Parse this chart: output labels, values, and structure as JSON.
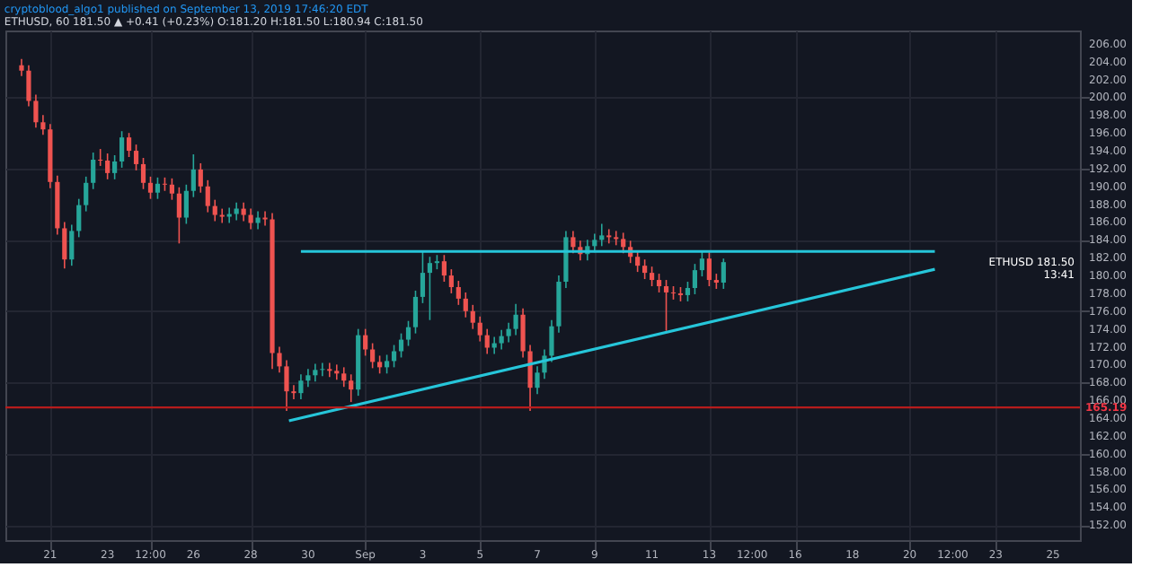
{
  "chart_data": {
    "type": "candlestick",
    "title": "cryptoblood_algo1 published on September 13, 2019 17:46:20 EDT",
    "subtitle": "ETHUSD, 60 181.50 ▲ +0.41 (+0.23%) O:181.20 H:181.50 L:180.94 C:181.50",
    "x": [
      "2019-08-20T00:00",
      "2019-08-20T06:00",
      "2019-08-20T12:00",
      "2019-08-20T18:00",
      "2019-08-21T00:00",
      "2019-08-21T06:00",
      "2019-08-21T12:00",
      "2019-08-21T18:00",
      "2019-08-22T00:00",
      "2019-08-22T06:00",
      "2019-08-22T12:00",
      "2019-08-22T18:00",
      "2019-08-23T00:00",
      "2019-08-23T06:00",
      "2019-08-23T12:00",
      "2019-08-23T18:00",
      "2019-08-24T00:00",
      "2019-08-24T06:00",
      "2019-08-24T12:00",
      "2019-08-24T18:00",
      "2019-08-25T00:00",
      "2019-08-25T06:00",
      "2019-08-25T12:00",
      "2019-08-25T18:00",
      "2019-08-26T00:00",
      "2019-08-26T06:00",
      "2019-08-26T12:00",
      "2019-08-26T18:00",
      "2019-08-27T00:00",
      "2019-08-27T06:00",
      "2019-08-27T12:00",
      "2019-08-27T18:00",
      "2019-08-28T00:00",
      "2019-08-28T06:00",
      "2019-08-28T12:00",
      "2019-08-28T18:00",
      "2019-08-29T00:00",
      "2019-08-29T06:00",
      "2019-08-29T12:00",
      "2019-08-29T18:00",
      "2019-08-30T00:00",
      "2019-08-30T06:00",
      "2019-08-30T12:00",
      "2019-08-30T18:00",
      "2019-08-31T00:00",
      "2019-08-31T06:00",
      "2019-08-31T12:00",
      "2019-08-31T18:00",
      "2019-09-01T00:00",
      "2019-09-01T06:00",
      "2019-09-01T12:00",
      "2019-09-01T18:00",
      "2019-09-02T00:00",
      "2019-09-02T06:00",
      "2019-09-02T12:00",
      "2019-09-02T18:00",
      "2019-09-03T00:00",
      "2019-09-03T06:00",
      "2019-09-03T12:00",
      "2019-09-03T18:00",
      "2019-09-04T00:00",
      "2019-09-04T06:00",
      "2019-09-04T12:00",
      "2019-09-04T18:00",
      "2019-09-05T00:00",
      "2019-09-05T06:00",
      "2019-09-05T12:00",
      "2019-09-05T18:00",
      "2019-09-06T00:00",
      "2019-09-06T06:00",
      "2019-09-06T12:00",
      "2019-09-06T18:00",
      "2019-09-07T00:00",
      "2019-09-07T06:00",
      "2019-09-07T12:00",
      "2019-09-07T18:00",
      "2019-09-08T00:00",
      "2019-09-08T06:00",
      "2019-09-08T12:00",
      "2019-09-08T18:00",
      "2019-09-09T00:00",
      "2019-09-09T06:00",
      "2019-09-09T12:00",
      "2019-09-09T18:00",
      "2019-09-10T00:00",
      "2019-09-10T06:00",
      "2019-09-10T12:00",
      "2019-09-10T18:00",
      "2019-09-11T00:00",
      "2019-09-11T06:00",
      "2019-09-11T12:00",
      "2019-09-11T18:00",
      "2019-09-12T00:00",
      "2019-09-12T06:00",
      "2019-09-12T12:00",
      "2019-09-12T18:00",
      "2019-09-13T00:00",
      "2019-09-13T06:00",
      "2019-09-13T12:00"
    ],
    "ohlc": [
      [
        203.6,
        204.3,
        202.4,
        203
      ],
      [
        203,
        203.6,
        199,
        199.6
      ],
      [
        199.6,
        200.3,
        196.6,
        197.2
      ],
      [
        197.2,
        198,
        195.8,
        196.4
      ],
      [
        196.4,
        197,
        189.8,
        190.5
      ],
      [
        190.5,
        191.2,
        184.6,
        185.3
      ],
      [
        185.3,
        186,
        180.8,
        181.8
      ],
      [
        181.8,
        185.7,
        181.1,
        185
      ],
      [
        185,
        188.6,
        184.3,
        187.9
      ],
      [
        187.9,
        191.1,
        187.2,
        190.4
      ],
      [
        190.4,
        193.8,
        189.7,
        193
      ],
      [
        193,
        194.2,
        192.3,
        192.9
      ],
      [
        192.9,
        193.7,
        190.8,
        191.5
      ],
      [
        191.5,
        193.5,
        190.8,
        192.8
      ],
      [
        192.8,
        196.2,
        192.1,
        195.5
      ],
      [
        195.5,
        196,
        193.3,
        194
      ],
      [
        194,
        194.7,
        191.8,
        192.5
      ],
      [
        192.5,
        193.2,
        189.7,
        190.4
      ],
      [
        190.4,
        191.1,
        188.6,
        189.3
      ],
      [
        189.3,
        191,
        188.6,
        190.3
      ],
      [
        190.3,
        191,
        189.5,
        190.2
      ],
      [
        190.2,
        190.9,
        188.5,
        189.2
      ],
      [
        189.2,
        189.9,
        183.6,
        186.5
      ],
      [
        186.5,
        190.2,
        185.8,
        189.5
      ],
      [
        189.5,
        193.6,
        188.8,
        191.9
      ],
      [
        191.9,
        192.6,
        189.3,
        190
      ],
      [
        190,
        190.7,
        187.1,
        187.8
      ],
      [
        187.8,
        188.5,
        186.1,
        186.8
      ],
      [
        186.8,
        187.5,
        185.9,
        186.6
      ],
      [
        186.6,
        187.6,
        185.9,
        186.9
      ],
      [
        186.9,
        188.2,
        186.2,
        187.5
      ],
      [
        187.5,
        188.2,
        186.1,
        186.8
      ],
      [
        186.8,
        187.5,
        185.2,
        185.9
      ],
      [
        185.9,
        187.2,
        185.2,
        186.5
      ],
      [
        186.5,
        187.2,
        185.6,
        186.3
      ],
      [
        186.3,
        187,
        169.5,
        171.3
      ],
      [
        171.3,
        172,
        169.1,
        169.8
      ],
      [
        169.8,
        170.5,
        164.8,
        167
      ],
      [
        167,
        167.7,
        166.1,
        166.8
      ],
      [
        166.8,
        168.9,
        166.1,
        168.2
      ],
      [
        168.2,
        169.5,
        167.5,
        168.8
      ],
      [
        168.8,
        170.1,
        168.1,
        169.4
      ],
      [
        169.4,
        170.2,
        168.7,
        169.5
      ],
      [
        169.5,
        170.2,
        168.6,
        169.3
      ],
      [
        169.3,
        170,
        168.3,
        169
      ],
      [
        169,
        169.7,
        167.5,
        168.2
      ],
      [
        168.2,
        168.9,
        165.8,
        167.2
      ],
      [
        167.2,
        174,
        166.5,
        173.3
      ],
      [
        173.3,
        174,
        171,
        171.7
      ],
      [
        171.7,
        172.4,
        169.6,
        170.3
      ],
      [
        170.3,
        171,
        169,
        169.7
      ],
      [
        169.7,
        171.1,
        169,
        170.4
      ],
      [
        170.4,
        172.2,
        169.7,
        171.5
      ],
      [
        171.5,
        173.5,
        170.8,
        172.8
      ],
      [
        172.8,
        174.9,
        172.1,
        174.2
      ],
      [
        174.2,
        178.3,
        173.5,
        177.6
      ],
      [
        177.6,
        182.8,
        176.9,
        180.3
      ],
      [
        180.3,
        182.1,
        175,
        181.4
      ],
      [
        181.4,
        182.3,
        180.7,
        181.6
      ],
      [
        181.6,
        182.3,
        179.3,
        180
      ],
      [
        180,
        180.7,
        178,
        178.7
      ],
      [
        178.7,
        179.4,
        176.7,
        177.4
      ],
      [
        177.4,
        178.1,
        175.3,
        176
      ],
      [
        176,
        176.7,
        174,
        174.7
      ],
      [
        174.7,
        175.4,
        172.6,
        173.3
      ],
      [
        173.3,
        174,
        171.2,
        171.9
      ],
      [
        171.9,
        173.1,
        171.2,
        172.4
      ],
      [
        172.4,
        173.9,
        171.7,
        173.2
      ],
      [
        173.2,
        174.7,
        172.5,
        174
      ],
      [
        174,
        176.8,
        173.3,
        175.6
      ],
      [
        175.6,
        176.3,
        170.8,
        171.5
      ],
      [
        171.5,
        172.2,
        164.8,
        167.4
      ],
      [
        167.4,
        169.8,
        166.7,
        169.1
      ],
      [
        169.1,
        171.7,
        168.4,
        171
      ],
      [
        171,
        175,
        170.3,
        174.3
      ],
      [
        174.3,
        180,
        173.6,
        179.3
      ],
      [
        179.3,
        185,
        178.6,
        184.3
      ],
      [
        184.3,
        185,
        182.5,
        183.2
      ],
      [
        183.2,
        183.9,
        181.7,
        182.4
      ],
      [
        182.4,
        184,
        181.7,
        183.3
      ],
      [
        183.3,
        184.7,
        182.6,
        184
      ],
      [
        184,
        185.8,
        183.3,
        184.5
      ],
      [
        184.5,
        185.2,
        183.6,
        184.3
      ],
      [
        184.3,
        185,
        183.4,
        184.1
      ],
      [
        184.1,
        184.8,
        182.5,
        183.2
      ],
      [
        183.2,
        183.9,
        181.4,
        182.1
      ],
      [
        182.1,
        182.8,
        180.4,
        181.1
      ],
      [
        181.1,
        181.8,
        179.6,
        180.3
      ],
      [
        180.3,
        181,
        178.8,
        179.5
      ],
      [
        179.5,
        180.2,
        178.1,
        178.8
      ],
      [
        178.8,
        179.5,
        173.8,
        178.1
      ],
      [
        178.1,
        178.8,
        177.3,
        178
      ],
      [
        178,
        178.7,
        177.1,
        177.8
      ],
      [
        177.8,
        179.3,
        177.1,
        178.6
      ],
      [
        178.6,
        181.3,
        177.9,
        180.6
      ],
      [
        180.6,
        182.8,
        179.9,
        181.9
      ],
      [
        181.9,
        182.6,
        178.8,
        179.5
      ],
      [
        179.5,
        180.2,
        178.5,
        179.2
      ],
      [
        179.2,
        181.9,
        178.5,
        181.5
      ]
    ],
    "series": [
      {
        "type": "line",
        "color": "#26c6da",
        "x": [
          "2019-08-29T18:00",
          "2019-09-20T21:00"
        ],
        "values": [
          182.7,
          182.7
        ]
      },
      {
        "type": "line",
        "color": "#26c6da",
        "x": [
          "2019-08-29T08:00",
          "2019-09-20T21:00"
        ],
        "values": [
          163.7,
          180.7
        ]
      }
    ],
    "ref_lines": [
      {
        "axis": "y",
        "value": 165.19,
        "label": "165.19",
        "color": "#b71c1c"
      }
    ],
    "annotations": [
      "ETHUSD 181.50",
      "13:41"
    ],
    "xlim": [
      "2019-08-19T18:00",
      "2019-09-25T15:00"
    ],
    "xticks": [
      {
        "value": "2019-08-21",
        "label": "21"
      },
      {
        "value": "2019-08-23",
        "label": "23"
      },
      {
        "value": "2019-08-24T12:00",
        "label": "12:00"
      },
      {
        "value": "2019-08-26",
        "label": "26"
      },
      {
        "value": "2019-08-28",
        "label": "28"
      },
      {
        "value": "2019-08-30",
        "label": "30"
      },
      {
        "value": "2019-09-01",
        "label": "Sep"
      },
      {
        "value": "2019-09-03",
        "label": "3"
      },
      {
        "value": "2019-09-05",
        "label": "5"
      },
      {
        "value": "2019-09-07",
        "label": "7"
      },
      {
        "value": "2019-09-09",
        "label": "9"
      },
      {
        "value": "2019-09-11",
        "label": "11"
      },
      {
        "value": "2019-09-13",
        "label": "13"
      },
      {
        "value": "2019-09-14T12:00",
        "label": "12:00"
      },
      {
        "value": "2019-09-16",
        "label": "16"
      },
      {
        "value": "2019-09-18",
        "label": "18"
      },
      {
        "value": "2019-09-20",
        "label": "20"
      },
      {
        "value": "2019-09-21T12:00",
        "label": "12:00"
      },
      {
        "value": "2019-09-23",
        "label": "23"
      },
      {
        "value": "2019-09-25",
        "label": "25"
      }
    ],
    "ylim": [
      150.3,
      207.5
    ],
    "yticks": [
      {
        "value": 152,
        "label": "152.00"
      },
      {
        "value": 154,
        "label": "154.00"
      },
      {
        "value": 156,
        "label": "156.00"
      },
      {
        "value": 158,
        "label": "158.00"
      },
      {
        "value": 160,
        "label": "160.00"
      },
      {
        "value": 162,
        "label": "162.00"
      },
      {
        "value": 164,
        "label": "164.00"
      },
      {
        "value": 166,
        "label": "166.00"
      },
      {
        "value": 168,
        "label": "168.00"
      },
      {
        "value": 170,
        "label": "170.00"
      },
      {
        "value": 172,
        "label": "172.00"
      },
      {
        "value": 174,
        "label": "174.00"
      },
      {
        "value": 176,
        "label": "176.00"
      },
      {
        "value": 178,
        "label": "178.00"
      },
      {
        "value": 180,
        "label": "180.00"
      },
      {
        "value": 182,
        "label": "182.00"
      },
      {
        "value": 184,
        "label": "184.00"
      },
      {
        "value": 186,
        "label": "186.00"
      },
      {
        "value": 188,
        "label": "188.00"
      },
      {
        "value": 190,
        "label": "190.00"
      },
      {
        "value": 192,
        "label": "192.00"
      },
      {
        "value": 194,
        "label": "194.00"
      },
      {
        "value": 196,
        "label": "196.00"
      },
      {
        "value": 198,
        "label": "198.00"
      },
      {
        "value": 200,
        "label": "200.00"
      },
      {
        "value": 202,
        "label": "202.00"
      },
      {
        "value": 204,
        "label": "204.00"
      },
      {
        "value": 206,
        "label": "206.00"
      }
    ],
    "grid": true
  }
}
